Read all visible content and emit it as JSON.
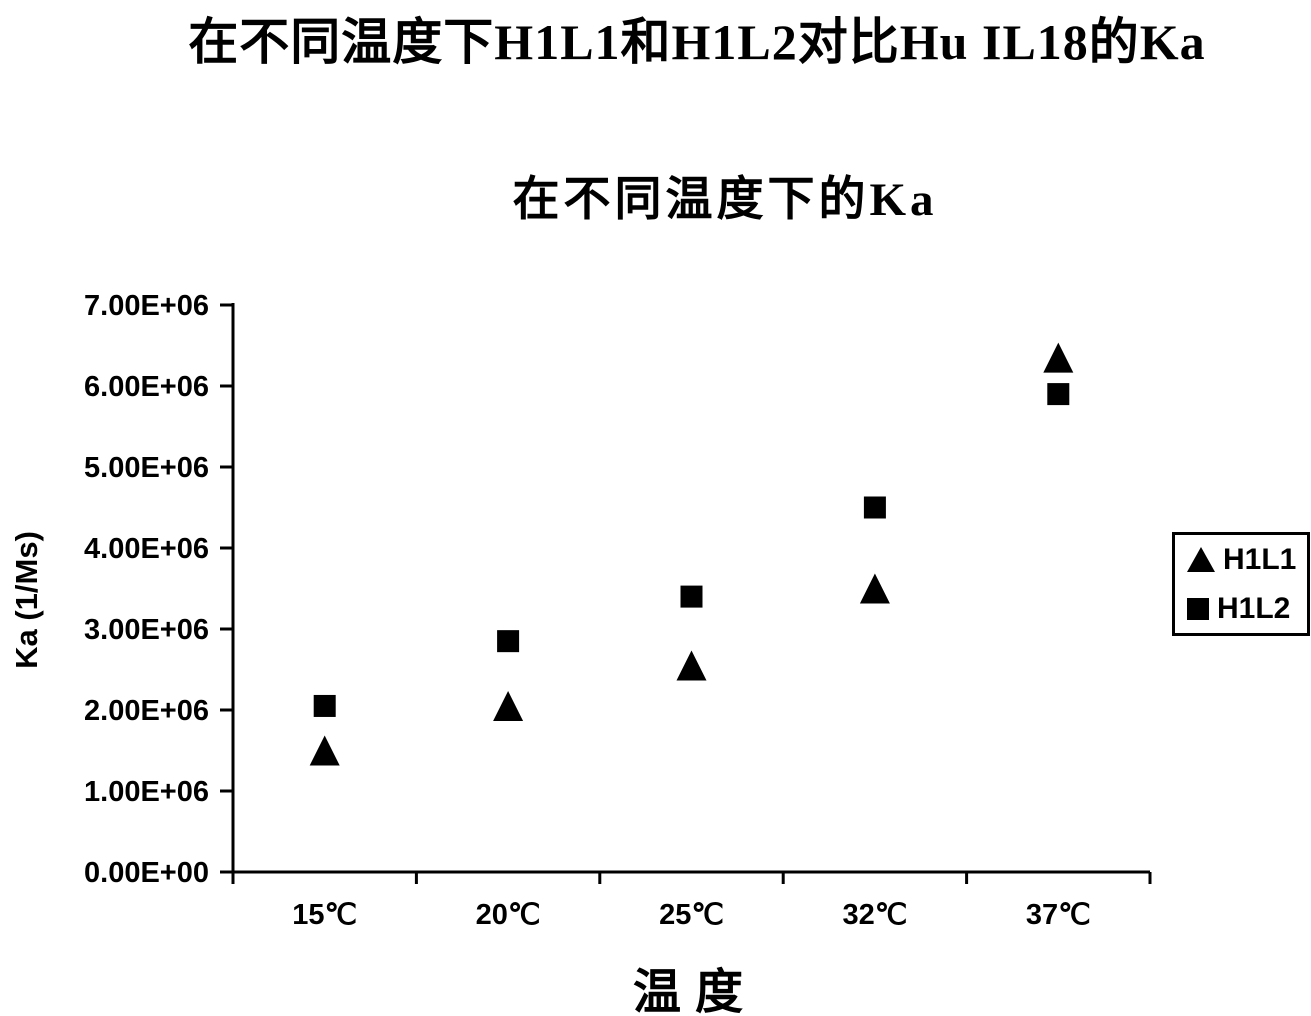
{
  "title": "在不同温度下H1L1和H1L2对比Hu IL18的Ka",
  "subtitle": "在不同温度下的Ka",
  "chart_data": {
    "type": "scatter",
    "title": "在不同温度下H1L1和H1L2对比Hu IL18的Ka",
    "subtitle": "在不同温度下的Ka",
    "xlabel": "温度",
    "ylabel": "Ka (1/Ms)",
    "categories": [
      "15℃",
      "20℃",
      "25℃",
      "32℃",
      "37℃"
    ],
    "series": [
      {
        "name": "H1L1",
        "marker": "triangle",
        "values": [
          1500000,
          2050000,
          2550000,
          3500000,
          6350000
        ]
      },
      {
        "name": "H1L2",
        "marker": "square",
        "values": [
          2050000,
          2850000,
          3400000,
          4500000,
          5900000
        ]
      }
    ],
    "ylim": [
      0,
      7000000
    ],
    "y_tick_labels": [
      "0.00E+00",
      "1.00E+06",
      "2.00E+06",
      "3.00E+06",
      "4.00E+06",
      "5.00E+06",
      "6.00E+06",
      "7.00E+06"
    ],
    "grid": false,
    "legend_position": "right",
    "marker_color": "#000000",
    "axis_color": "#000000",
    "background_color": "#ffffff"
  },
  "legend": {
    "items": [
      {
        "label": "H1L1",
        "marker": "triangle"
      },
      {
        "label": "H1L2",
        "marker": "square"
      }
    ]
  }
}
